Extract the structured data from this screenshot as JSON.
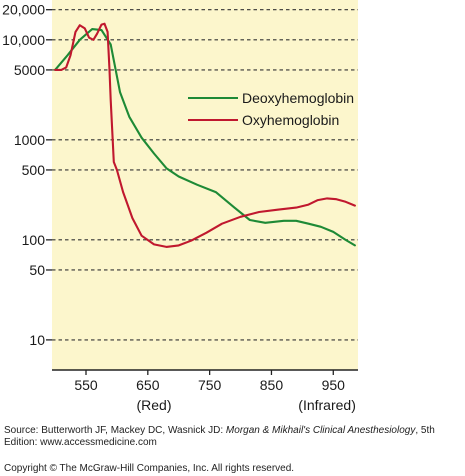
{
  "chart_data": {
    "type": "line",
    "title": "",
    "xlabel": "",
    "ylabel": "",
    "yscale": "log",
    "xlim": [
      495,
      990
    ],
    "ylim": [
      5,
      25000
    ],
    "x_ticks": [
      550,
      650,
      750,
      850,
      950
    ],
    "x_tick_labels": [
      "550",
      "650",
      "750",
      "850",
      "950"
    ],
    "y_ticks": [
      20000,
      10000,
      5000,
      1000,
      500,
      100,
      50,
      10
    ],
    "y_tick_labels": [
      "20,000",
      "10,000",
      "5000",
      "1000",
      "500",
      "100",
      "50",
      "10"
    ],
    "band_labels": [
      {
        "text": "(Red)",
        "x": 660
      },
      {
        "text": "(Infrared)",
        "x": 940
      }
    ],
    "legend_position": "right",
    "series": [
      {
        "name": "Deoxyhemoglobin",
        "color": "#1e8a36",
        "x": [
          500,
          520,
          540,
          560,
          575,
          590,
          605,
          620,
          640,
          660,
          680,
          700,
          730,
          760,
          790,
          815,
          840,
          870,
          890,
          910,
          930,
          950,
          970,
          985
        ],
        "y": [
          5000,
          7000,
          10000,
          12800,
          12500,
          9000,
          3000,
          1700,
          1050,
          730,
          520,
          430,
          355,
          300,
          210,
          158,
          148,
          155,
          155,
          145,
          135,
          120,
          100,
          88
        ]
      },
      {
        "name": "Oxyhemoglobin",
        "color": "#c0182e",
        "x": [
          500,
          510,
          518,
          525,
          533,
          540,
          548,
          555,
          562,
          568,
          575,
          580,
          585,
          588,
          590,
          595,
          600,
          610,
          625,
          640,
          660,
          680,
          700,
          720,
          745,
          770,
          800,
          830,
          860,
          890,
          910,
          925,
          940,
          955,
          970,
          985
        ],
        "y": [
          5000,
          5000,
          5300,
          7000,
          12000,
          14000,
          13000,
          10500,
          10000,
          11500,
          14200,
          14500,
          12000,
          5000,
          2500,
          600,
          500,
          300,
          165,
          110,
          90,
          85,
          88,
          98,
          118,
          145,
          170,
          190,
          200,
          210,
          225,
          250,
          260,
          255,
          240,
          220
        ]
      }
    ]
  },
  "source": {
    "prefix": "Source: Butterworth JF, Mackey DC, Wasnick JD: ",
    "book": "Morgan & Mikhail's Clinical Anesthesiology",
    "suffix": ", 5th Edition: www.accessmedicine.com"
  },
  "copyright": "Copyright © The McGraw-Hill Companies, Inc. All rights reserved.",
  "colors": {
    "plot_background": "#fcf6cc",
    "axis": "#222222"
  }
}
